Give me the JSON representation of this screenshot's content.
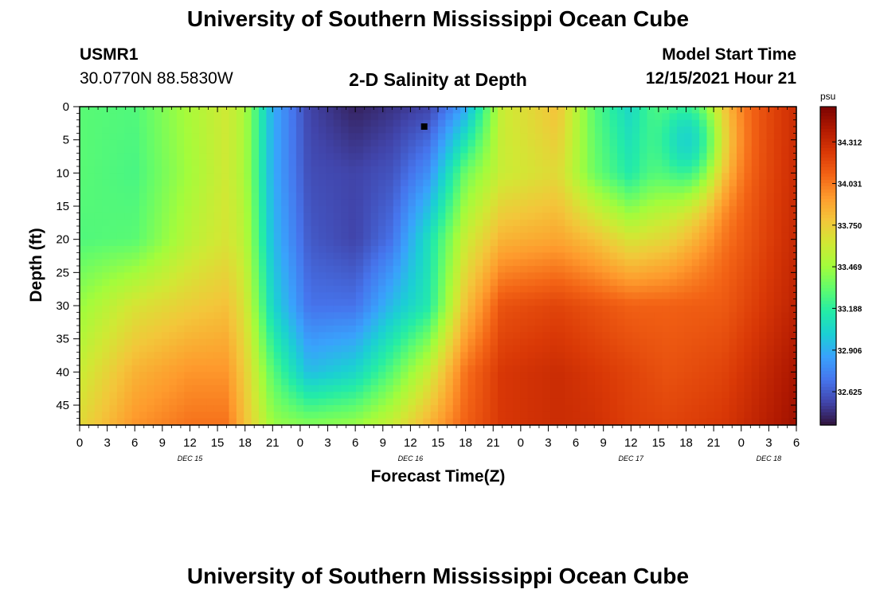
{
  "header": {
    "title": "University of Southern Mississippi Ocean Cube",
    "title_repeat": "University of Southern Mississippi Ocean Cube",
    "station_id": "USMR1",
    "station_coords": "30.0770N  88.5830W",
    "model_start_label": "Model Start Time",
    "model_start_value": "12/15/2021 Hour 21"
  },
  "chart_data": {
    "type": "heatmap",
    "title": "2-D Salinity at Depth",
    "xlabel": "Forecast Time(Z)",
    "ylabel": "Depth (ft)",
    "units": "psu",
    "x_tick_labels": [
      "0",
      "3",
      "6",
      "9",
      "12",
      "15",
      "18",
      "21",
      "0",
      "3",
      "6",
      "9",
      "12",
      "15",
      "18",
      "21",
      "0",
      "3",
      "6",
      "9",
      "12",
      "15",
      "18",
      "21",
      "0",
      "3",
      "6"
    ],
    "day_labels": [
      {
        "label": "DEC 15",
        "hour": 12
      },
      {
        "label": "DEC 16",
        "hour": 36
      },
      {
        "label": "DEC 17",
        "hour": 60
      },
      {
        "label": "DEC 18",
        "hour": 75
      }
    ],
    "xlim_hours": [
      0,
      78
    ],
    "y_ticks": [
      0,
      5,
      10,
      15,
      20,
      25,
      30,
      35,
      40,
      45
    ],
    "ylim": [
      0,
      48
    ],
    "y_inverted": true,
    "colorbar": {
      "ticks": [
        34.312,
        34.031,
        33.75,
        33.469,
        33.188,
        32.906,
        32.625
      ],
      "range": [
        32.4,
        34.55
      ],
      "colors": [
        "#30123b",
        "#4145ab",
        "#4675ed",
        "#39a2fc",
        "#1bcfd4",
        "#24eca6",
        "#61fc6c",
        "#a4fc3b",
        "#d1e834",
        "#f3c63a",
        "#fe9b2d",
        "#f36315",
        "#d93806",
        "#b11901",
        "#7a0402"
      ]
    },
    "field_anchors": {
      "hours": [
        0,
        6,
        12,
        16,
        18,
        21,
        25,
        30,
        34,
        38,
        42,
        46,
        52,
        56,
        60,
        64,
        70,
        78
      ],
      "depths": [
        0,
        10,
        20,
        30,
        40,
        48
      ],
      "values": [
        [
          33.3,
          33.28,
          33.5,
          33.62,
          33.5,
          32.9,
          32.55,
          32.45,
          32.5,
          32.55,
          32.88,
          33.6,
          33.8,
          33.3,
          33.05,
          33.55,
          34.0,
          34.3
        ],
        [
          33.3,
          33.26,
          33.48,
          33.62,
          33.5,
          32.9,
          32.58,
          32.55,
          32.6,
          32.8,
          33.35,
          33.6,
          33.7,
          33.35,
          33.15,
          33.55,
          34.02,
          34.3
        ],
        [
          33.28,
          33.3,
          33.55,
          33.65,
          33.55,
          32.95,
          32.62,
          32.55,
          32.7,
          33.1,
          33.6,
          33.85,
          33.9,
          33.8,
          33.65,
          33.75,
          34.05,
          34.32
        ],
        [
          33.45,
          33.65,
          33.75,
          33.8,
          33.65,
          33.05,
          32.7,
          32.7,
          32.95,
          33.15,
          33.8,
          34.15,
          34.2,
          34.15,
          34.1,
          34.1,
          34.12,
          34.35
        ],
        [
          33.6,
          33.85,
          33.95,
          33.95,
          33.75,
          33.3,
          32.95,
          33.05,
          33.3,
          33.6,
          34.05,
          34.25,
          34.3,
          34.25,
          34.2,
          34.15,
          34.2,
          34.42
        ],
        [
          33.7,
          33.95,
          34.05,
          34.05,
          33.8,
          33.45,
          33.4,
          33.45,
          33.6,
          33.85,
          34.1,
          34.25,
          34.3,
          34.28,
          34.22,
          34.2,
          34.25,
          34.45
        ]
      ]
    },
    "features": [
      {
        "kind": "blob",
        "hour": 66,
        "depth": 5,
        "value": 33.05,
        "rx_hours": 4.0,
        "ry_depth": 9.0
      }
    ],
    "marker": {
      "hour": 37.5,
      "depth": 3
    }
  }
}
